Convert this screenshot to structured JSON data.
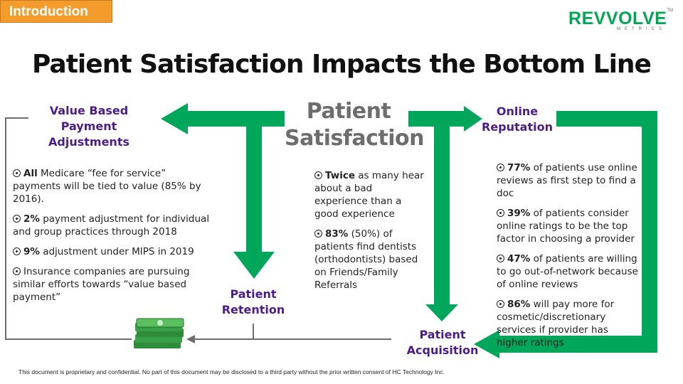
{
  "section_tag": {
    "label": "Introduction",
    "color": "#f39c2b"
  },
  "logo": {
    "name": "REVVOLVE",
    "sub": "METRICS",
    "tm": "TM",
    "color": "#00a651"
  },
  "title": "Patient Satisfaction Impacts the Bottom Line",
  "center": {
    "line1": "Patient",
    "line2": "Satisfaction"
  },
  "nodes": {
    "value_based": {
      "line1": "Value Based Payment",
      "line2": "Adjustments"
    },
    "online_reputation": {
      "line1": "Online",
      "line2": "Reputation"
    },
    "retention": {
      "line1": "Patient",
      "line2": "Retention"
    },
    "acquisition": {
      "line1": "Patient",
      "line2": "Acquisition"
    }
  },
  "left_bullets": [
    {
      "bold": "All",
      "text": " Medicare “fee for service” payments will be tied to value (85% by 2016)."
    },
    {
      "bold": "2%",
      "text": " payment adjustment for individual and group practices through 2018"
    },
    {
      "bold": "9%",
      "text": " adjustment under MIPS in 2019"
    },
    {
      "bold": "",
      "text": "Insurance companies are pursuing similar efforts towards “value based payment”"
    }
  ],
  "center_bullets": [
    {
      "bold": "Twice",
      "text": " as many hear about a bad experience than a good experience"
    },
    {
      "bold": "83%",
      "text": " (50%) of patients find dentists (orthodontists) based on Friends/Family Referrals"
    }
  ],
  "right_bullets": [
    {
      "bold": "77%",
      "text": " of patients use online reviews as first step to find a doc"
    },
    {
      "bold": "39%",
      "text": " of patients consider online ratings to be the top factor in choosing a provider"
    },
    {
      "bold": "47%",
      "text": " of patients are willing to go out-of-network because of online reviews"
    },
    {
      "bold": "86%",
      "text": " will pay more for cosmetic/discretionary services if provider has higher ratings"
    }
  ],
  "footer": "This document is proprietary and confidential. No part of this document may be disclosed to a third party without the prior written consent of HC Technology Inc.",
  "colors": {
    "arrow_green": "#00a65a",
    "node_purple": "#4b1c8a",
    "line_gray": "#6d6d6d",
    "money_green": "#2e8b3a"
  }
}
